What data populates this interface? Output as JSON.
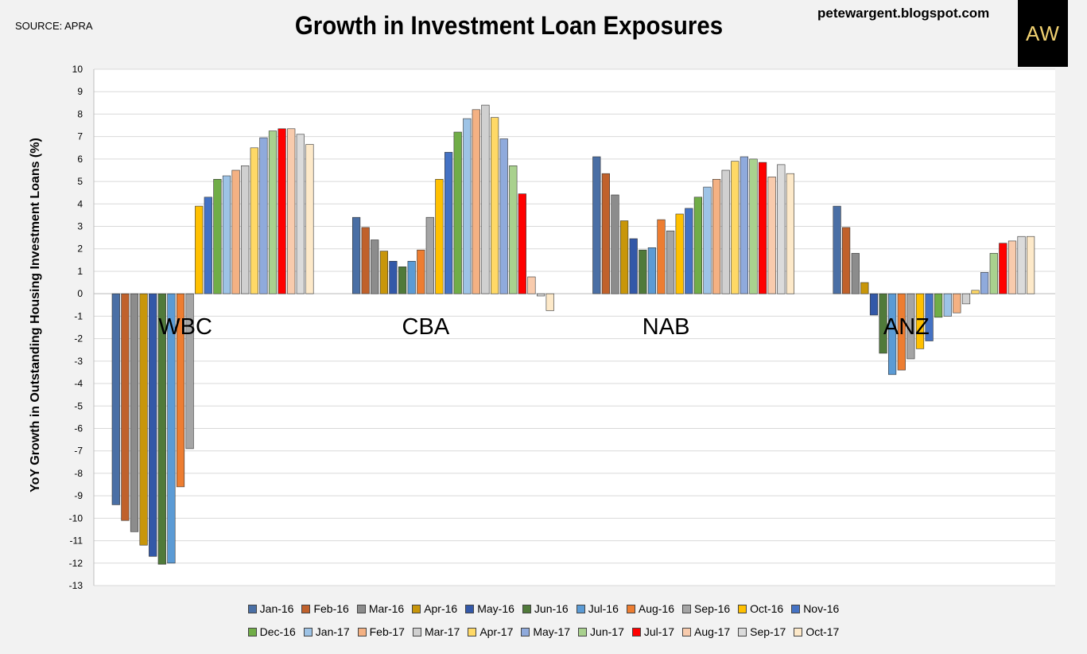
{
  "source": "SOURCE: APRA",
  "blog": "petewargent.blogspot.com",
  "logo_text": "AW",
  "chart_data": {
    "type": "bar",
    "title": "Growth in Investment Loan Exposures",
    "xlabel": "",
    "ylabel": "YoY Growth in Outstanding Housing Investment Loans (%)",
    "ylim": [
      -13,
      10
    ],
    "yticks": [
      "10",
      "9",
      "8",
      "7",
      "6",
      "5",
      "4",
      "3",
      "2",
      "1",
      "0",
      "-1",
      "-2",
      "-3",
      "-4",
      "-5",
      "-6",
      "-7",
      "-8",
      "-9",
      "-10",
      "-11",
      "-12",
      "-13"
    ],
    "categories": [
      "WBC",
      "CBA",
      "NAB",
      "ANZ"
    ],
    "series": [
      {
        "name": "Jan-16",
        "color": "#4a6fa5",
        "values": [
          -9.4,
          3.4,
          6.1,
          3.9
        ]
      },
      {
        "name": "Feb-16",
        "color": "#c0612b",
        "values": [
          -10.1,
          2.95,
          5.35,
          2.95
        ]
      },
      {
        "name": "Mar-16",
        "color": "#8c8c8c",
        "values": [
          -10.6,
          2.4,
          4.4,
          1.8
        ]
      },
      {
        "name": "Apr-16",
        "color": "#c8960a",
        "values": [
          -11.2,
          1.9,
          3.25,
          0.5
        ]
      },
      {
        "name": "May-16",
        "color": "#3358a8",
        "values": [
          -11.7,
          1.45,
          2.45,
          -0.95
        ]
      },
      {
        "name": "Jun-16",
        "color": "#507a3a",
        "values": [
          -12.05,
          1.2,
          1.95,
          -2.65
        ]
      },
      {
        "name": "Jul-16",
        "color": "#5b9bd5",
        "values": [
          -12.0,
          1.45,
          2.05,
          -3.6
        ]
      },
      {
        "name": "Aug-16",
        "color": "#ed7d31",
        "values": [
          -8.6,
          1.95,
          3.3,
          -3.4
        ]
      },
      {
        "name": "Sep-16",
        "color": "#a5a5a5",
        "values": [
          -6.9,
          3.4,
          2.8,
          -2.9
        ]
      },
      {
        "name": "Oct-16",
        "color": "#ffc000",
        "values": [
          3.9,
          5.1,
          3.55,
          -2.45
        ]
      },
      {
        "name": "Nov-16",
        "color": "#4472c4",
        "values": [
          4.3,
          6.3,
          3.8,
          -2.1
        ]
      },
      {
        "name": "Dec-16",
        "color": "#70ad47",
        "values": [
          5.1,
          7.2,
          4.3,
          -1.05
        ]
      },
      {
        "name": "Jan-17",
        "color": "#9dc3e6",
        "values": [
          5.25,
          7.8,
          4.75,
          -1.0
        ]
      },
      {
        "name": "Feb-17",
        "color": "#f4b183",
        "values": [
          5.5,
          8.2,
          5.1,
          -0.85
        ]
      },
      {
        "name": "Mar-17",
        "color": "#d0d0d0",
        "values": [
          5.7,
          8.4,
          5.5,
          -0.45
        ]
      },
      {
        "name": "Apr-17",
        "color": "#ffd966",
        "values": [
          6.5,
          7.85,
          5.9,
          0.15
        ]
      },
      {
        "name": "May-17",
        "color": "#8faadc",
        "values": [
          6.95,
          6.9,
          6.1,
          0.95
        ]
      },
      {
        "name": "Jun-17",
        "color": "#a9d18e",
        "values": [
          7.25,
          5.7,
          6.0,
          1.8
        ]
      },
      {
        "name": "Jul-17",
        "color": "#ff0000",
        "values": [
          7.35,
          4.45,
          5.85,
          2.25
        ]
      },
      {
        "name": "Aug-17",
        "color": "#f8cbad",
        "values": [
          7.35,
          0.75,
          5.2,
          2.35
        ]
      },
      {
        "name": "Sep-17",
        "color": "#dbdbdb",
        "values": [
          7.1,
          -0.1,
          5.75,
          2.55
        ]
      },
      {
        "name": "Oct-17",
        "color": "#fde9c9",
        "values": [
          6.65,
          -0.75,
          5.35,
          2.55
        ]
      }
    ]
  }
}
